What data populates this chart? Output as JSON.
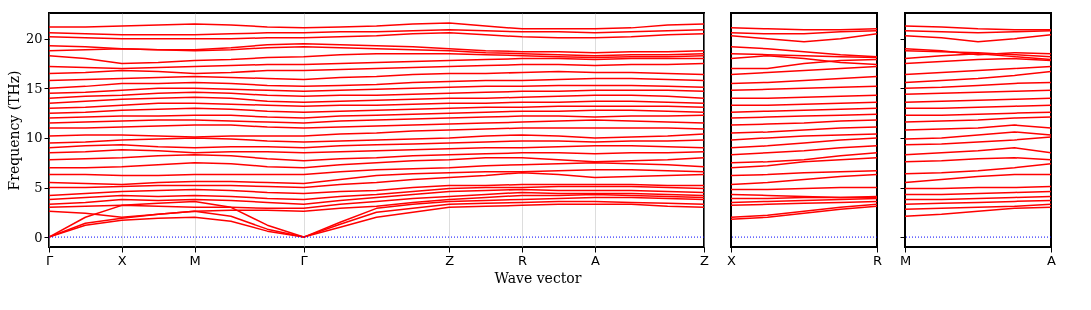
{
  "chart_data": [
    {
      "type": "line",
      "ylabel": "Frequency (THz)",
      "xlabel": "Wave vector",
      "color": "#ff0000",
      "grid": "x",
      "ylim": [
        -1,
        22.6
      ],
      "yticks": [
        0,
        5,
        10,
        15,
        20
      ],
      "categories": [
        "Γ",
        null,
        "X",
        null,
        "M",
        null,
        null,
        "Γ",
        null,
        null,
        null,
        "Z",
        null,
        "R",
        null,
        "A",
        null,
        null,
        "Z"
      ],
      "ref_lines": [
        {
          "axis": "y",
          "value": 0,
          "color": "#0000ff",
          "line_style": "dotted"
        }
      ],
      "series": [
        {
          "values": [
            0,
            1.2,
            1.7,
            1.9,
            2.0,
            1.6,
            0.6,
            0,
            1.0,
            2.0,
            2.5,
            3.0,
            3.1,
            3.2,
            3.3,
            3.3,
            3.3,
            3.1,
            3.0
          ]
        },
        {
          "values": [
            0,
            1.4,
            1.9,
            2.3,
            2.6,
            2.1,
            0.8,
            0,
            1.3,
            2.5,
            2.9,
            3.3,
            3.4,
            3.5,
            3.6,
            3.6,
            3.5,
            3.4,
            3.3
          ]
        },
        {
          "values": [
            0,
            2.0,
            3.2,
            3.4,
            3.6,
            3.0,
            1.2,
            0,
            1.5,
            2.9,
            3.3,
            3.6,
            3.7,
            3.8,
            3.9,
            4.0,
            4.0,
            3.9,
            3.8
          ]
        },
        {
          "values": [
            2.6,
            2.4,
            2.0,
            2.3,
            2.6,
            2.7,
            2.7,
            2.6,
            2.9,
            3.1,
            3.5,
            3.8,
            4.0,
            4.2,
            4.2,
            4.3,
            4.2,
            4.1,
            4.0
          ]
        },
        {
          "values": [
            3.0,
            3.1,
            3.2,
            3.1,
            3.0,
            3.0,
            2.9,
            2.9,
            3.3,
            3.6,
            3.9,
            4.1,
            4.3,
            4.5,
            4.4,
            4.4,
            4.4,
            4.3,
            4.2
          ]
        },
        {
          "values": [
            3.3,
            3.5,
            3.8,
            3.7,
            3.8,
            3.7,
            3.5,
            3.3,
            3.7,
            4.0,
            4.3,
            4.6,
            4.7,
            4.8,
            4.7,
            4.7,
            4.7,
            4.6,
            4.5
          ]
        },
        {
          "values": [
            3.8,
            4.0,
            4.2,
            4.1,
            4.2,
            4.1,
            3.9,
            3.8,
            4.1,
            4.3,
            4.6,
            4.9,
            5.0,
            5.0,
            5.1,
            5.1,
            5.1,
            5.0,
            4.9
          ]
        },
        {
          "values": [
            4.2,
            4.4,
            4.6,
            4.7,
            4.8,
            4.7,
            4.5,
            4.4,
            4.6,
            4.7,
            5.0,
            5.2,
            5.2,
            5.3,
            5.3,
            5.3,
            5.3,
            5.2,
            5.2
          ]
        },
        {
          "values": [
            5.0,
            5.0,
            5.1,
            5.2,
            5.2,
            5.2,
            5.1,
            5.0,
            5.3,
            5.5,
            5.8,
            6.0,
            6.2,
            6.5,
            6.3,
            6.0,
            6.1,
            6.2,
            6.3
          ]
        },
        {
          "values": [
            5.5,
            5.4,
            5.3,
            5.5,
            5.6,
            5.6,
            5.5,
            5.4,
            5.8,
            6.2,
            6.4,
            6.5,
            6.6,
            6.6,
            6.7,
            6.8,
            6.8,
            6.7,
            6.6
          ]
        },
        {
          "values": [
            6.3,
            6.3,
            6.2,
            6.2,
            6.3,
            6.3,
            6.3,
            6.3,
            6.6,
            6.8,
            6.9,
            7.0,
            7.2,
            7.3,
            7.4,
            7.5,
            7.4,
            7.3,
            7.1
          ]
        },
        {
          "values": [
            7.0,
            7.0,
            7.1,
            7.3,
            7.5,
            7.4,
            7.1,
            7.0,
            7.3,
            7.5,
            7.7,
            7.8,
            8.0,
            8.0,
            7.8,
            7.6,
            7.7,
            7.8,
            8.0
          ]
        },
        {
          "values": [
            7.8,
            7.9,
            8.0,
            8.2,
            8.3,
            8.2,
            7.9,
            7.7,
            7.9,
            8.0,
            8.2,
            8.3,
            8.4,
            8.5,
            8.5,
            8.4,
            8.5,
            8.5,
            8.6
          ]
        },
        {
          "values": [
            8.5,
            8.6,
            8.8,
            8.7,
            8.5,
            8.6,
            8.6,
            8.5,
            8.6,
            8.7,
            8.8,
            8.9,
            9.0,
            9.0,
            9.1,
            9.2,
            9.2,
            9.1,
            9.0
          ]
        },
        {
          "values": [
            9.0,
            9.2,
            9.3,
            9.1,
            9.0,
            9.1,
            9.1,
            9.0,
            9.2,
            9.3,
            9.4,
            9.5,
            9.6,
            9.7,
            9.7,
            9.6,
            9.7,
            9.7,
            9.8
          ]
        },
        {
          "values": [
            9.5,
            9.6,
            9.8,
            9.9,
            10.0,
            9.9,
            9.7,
            9.6,
            9.7,
            9.8,
            9.9,
            10.0,
            10.2,
            10.3,
            10.2,
            10.0,
            10.1,
            10.2,
            10.4
          ]
        },
        {
          "values": [
            10.2,
            10.3,
            10.3,
            10.2,
            10.1,
            10.2,
            10.2,
            10.2,
            10.4,
            10.5,
            10.7,
            10.8,
            10.9,
            11.0,
            11.0,
            11.0,
            11.0,
            11.0,
            10.9
          ]
        },
        {
          "values": [
            11.0,
            11.0,
            11.1,
            11.2,
            11.3,
            11.3,
            11.1,
            11.0,
            11.1,
            11.2,
            11.3,
            11.4,
            11.5,
            11.6,
            11.7,
            11.8,
            11.7,
            11.6,
            11.5
          ]
        },
        {
          "values": [
            11.5,
            11.6,
            11.7,
            11.8,
            11.8,
            11.7,
            11.6,
            11.5,
            11.7,
            11.8,
            11.9,
            12.0,
            12.1,
            12.2,
            12.2,
            12.1,
            12.2,
            12.2,
            12.3
          ]
        },
        {
          "values": [
            12.0,
            12.1,
            12.2,
            12.2,
            12.3,
            12.3,
            12.1,
            12.0,
            12.2,
            12.3,
            12.4,
            12.5,
            12.6,
            12.7,
            12.7,
            12.8,
            12.8,
            12.7,
            12.6
          ]
        },
        {
          "values": [
            12.5,
            12.6,
            12.8,
            12.9,
            13.0,
            12.9,
            12.7,
            12.6,
            12.7,
            12.8,
            12.9,
            13.0,
            13.1,
            13.1,
            13.2,
            13.2,
            13.2,
            13.2,
            13.1
          ]
        },
        {
          "values": [
            13.0,
            13.1,
            13.3,
            13.5,
            13.5,
            13.4,
            13.3,
            13.2,
            13.3,
            13.3,
            13.4,
            13.5,
            13.5,
            13.6,
            13.6,
            13.7,
            13.7,
            13.6,
            13.5
          ]
        },
        {
          "values": [
            13.5,
            13.7,
            13.9,
            14.0,
            14.1,
            14.0,
            13.7,
            13.6,
            13.7,
            13.8,
            13.9,
            14.0,
            14.0,
            14.1,
            14.2,
            14.3,
            14.3,
            14.2,
            14.0
          ]
        },
        {
          "values": [
            14.0,
            14.2,
            14.3,
            14.5,
            14.6,
            14.5,
            14.3,
            14.2,
            14.3,
            14.3,
            14.4,
            14.5,
            14.6,
            14.7,
            14.7,
            14.8,
            14.8,
            14.8,
            14.7
          ]
        },
        {
          "values": [
            14.5,
            14.6,
            14.8,
            15.0,
            15.0,
            14.9,
            14.8,
            14.7,
            14.8,
            14.9,
            15.0,
            15.1,
            15.2,
            15.2,
            15.3,
            15.3,
            15.3,
            15.2,
            15.1
          ]
        },
        {
          "values": [
            15.0,
            15.2,
            15.5,
            15.5,
            15.6,
            15.5,
            15.3,
            15.2,
            15.3,
            15.4,
            15.6,
            15.7,
            15.8,
            15.8,
            15.9,
            16.0,
            16.0,
            15.9,
            15.8
          ]
        },
        {
          "values": [
            15.8,
            15.9,
            16.0,
            16.1,
            16.2,
            16.1,
            16.0,
            15.9,
            16.1,
            16.2,
            16.4,
            16.5,
            16.5,
            16.6,
            16.7,
            16.6,
            16.6,
            16.5,
            16.4
          ]
        },
        {
          "values": [
            16.5,
            16.6,
            16.8,
            16.7,
            16.5,
            16.6,
            16.8,
            16.8,
            16.9,
            17.0,
            17.1,
            17.2,
            17.3,
            17.4,
            17.4,
            17.3,
            17.4,
            17.4,
            17.5
          ]
        },
        {
          "values": [
            17.2,
            17.1,
            17.0,
            17.1,
            17.2,
            17.3,
            17.4,
            17.4,
            17.5,
            17.6,
            17.7,
            17.8,
            17.9,
            18.0,
            18.0,
            17.9,
            18.0,
            18.0,
            18.0
          ]
        },
        {
          "values": [
            18.3,
            18.0,
            17.5,
            17.6,
            17.8,
            17.9,
            18.1,
            18.2,
            18.4,
            18.5,
            18.5,
            18.5,
            18.4,
            18.3,
            18.2,
            18.1,
            18.2,
            18.2,
            18.3
          ]
        },
        {
          "values": [
            18.8,
            18.9,
            19.0,
            18.9,
            18.8,
            18.9,
            19.1,
            19.2,
            19.1,
            19.0,
            18.9,
            18.8,
            18.6,
            18.5,
            18.4,
            18.3,
            18.4,
            18.4,
            18.5
          ]
        },
        {
          "values": [
            19.3,
            19.2,
            19.0,
            18.9,
            18.9,
            19.1,
            19.4,
            19.5,
            19.4,
            19.3,
            19.2,
            19.0,
            18.8,
            18.7,
            18.7,
            18.6,
            18.7,
            18.7,
            18.8
          ]
        },
        {
          "values": [
            20.2,
            20.1,
            20.0,
            20.0,
            20.0,
            20.0,
            20.1,
            20.1,
            20.2,
            20.3,
            20.5,
            20.6,
            20.4,
            20.2,
            20.1,
            20.1,
            20.2,
            20.4,
            20.5
          ]
        },
        {
          "values": [
            20.6,
            20.5,
            20.4,
            20.4,
            20.4,
            20.5,
            20.6,
            20.6,
            20.7,
            20.7,
            20.8,
            20.9,
            20.8,
            20.7,
            20.7,
            20.6,
            20.7,
            20.8,
            20.9
          ]
        },
        {
          "values": [
            21.2,
            21.2,
            21.3,
            21.4,
            21.5,
            21.4,
            21.2,
            21.1,
            21.2,
            21.3,
            21.5,
            21.6,
            21.3,
            21.0,
            21.0,
            21.0,
            21.1,
            21.4,
            21.5
          ]
        }
      ]
    },
    {
      "type": "line",
      "color": "#ff0000",
      "tick_labels": "x",
      "ylim": [
        -1,
        22.6
      ],
      "yticks": [
        0,
        5,
        10,
        15,
        20
      ],
      "categories": [
        "X",
        null,
        null,
        null,
        "R"
      ],
      "ref_lines": [
        {
          "axis": "y",
          "value": 0,
          "color": "#0000ff",
          "line_style": "dotted"
        }
      ],
      "series": [
        {
          "values": [
            1.8,
            2.0,
            2.4,
            2.8,
            3.1
          ]
        },
        {
          "values": [
            2.0,
            2.2,
            2.6,
            3.0,
            3.3
          ]
        },
        {
          "values": [
            3.2,
            3.3,
            3.4,
            3.5,
            3.6
          ]
        },
        {
          "values": [
            3.5,
            3.6,
            3.7,
            3.8,
            3.9
          ]
        },
        {
          "values": [
            3.9,
            3.9,
            4.0,
            4.0,
            4.1
          ]
        },
        {
          "values": [
            4.3,
            4.2,
            4.1,
            4.0,
            4.0
          ]
        },
        {
          "values": [
            4.8,
            4.8,
            4.9,
            5.0,
            5.0
          ]
        },
        {
          "values": [
            5.3,
            5.5,
            5.8,
            6.1,
            6.3
          ]
        },
        {
          "values": [
            6.2,
            6.3,
            6.5,
            6.6,
            6.7
          ]
        },
        {
          "values": [
            7.0,
            7.2,
            7.6,
            7.8,
            8.0
          ]
        },
        {
          "values": [
            7.5,
            7.6,
            7.8,
            8.2,
            8.5
          ]
        },
        {
          "values": [
            8.3,
            8.5,
            8.7,
            9.0,
            9.2
          ]
        },
        {
          "values": [
            9.0,
            9.2,
            9.5,
            9.8,
            10.0
          ]
        },
        {
          "values": [
            9.8,
            10.0,
            10.2,
            10.3,
            10.4
          ]
        },
        {
          "values": [
            10.5,
            10.6,
            10.8,
            11.0,
            11.1
          ]
        },
        {
          "values": [
            11.3,
            11.4,
            11.5,
            11.7,
            11.8
          ]
        },
        {
          "values": [
            12.0,
            12.1,
            12.2,
            12.3,
            12.4
          ]
        },
        {
          "values": [
            12.6,
            12.7,
            12.8,
            12.9,
            13.0
          ]
        },
        {
          "values": [
            13.3,
            13.3,
            13.4,
            13.5,
            13.6
          ]
        },
        {
          "values": [
            14.0,
            14.0,
            14.1,
            14.2,
            14.3
          ]
        },
        {
          "values": [
            14.8,
            14.9,
            15.0,
            15.1,
            15.2
          ]
        },
        {
          "values": [
            15.5,
            15.6,
            15.8,
            16.0,
            16.2
          ]
        },
        {
          "values": [
            16.4,
            16.6,
            16.8,
            17.0,
            17.2
          ]
        },
        {
          "values": [
            17.0,
            17.0,
            17.5,
            17.8,
            17.9
          ]
        },
        {
          "values": [
            18.0,
            18.3,
            18.0,
            17.6,
            17.4
          ]
        },
        {
          "values": [
            18.5,
            18.4,
            18.3,
            18.2,
            18.1
          ]
        },
        {
          "values": [
            19.2,
            19.0,
            18.7,
            18.4,
            18.2
          ]
        },
        {
          "values": [
            20.3,
            20.0,
            19.7,
            20.0,
            20.5
          ]
        },
        {
          "values": [
            20.6,
            20.5,
            20.5,
            20.7,
            20.8
          ]
        },
        {
          "values": [
            21.1,
            21.0,
            20.9,
            20.9,
            21.0
          ]
        }
      ]
    },
    {
      "type": "line",
      "color": "#ff0000",
      "tick_labels": "x",
      "ylim": [
        -1,
        22.6
      ],
      "yticks": [
        0,
        5,
        10,
        15,
        20
      ],
      "categories": [
        "M",
        null,
        null,
        null,
        "A"
      ],
      "ref_lines": [
        {
          "axis": "y",
          "value": 0,
          "color": "#0000ff",
          "line_style": "dotted"
        }
      ],
      "series": [
        {
          "values": [
            2.1,
            2.3,
            2.6,
            2.9,
            3.0
          ]
        },
        {
          "values": [
            2.8,
            2.9,
            3.0,
            3.1,
            3.3
          ]
        },
        {
          "values": [
            3.3,
            3.4,
            3.5,
            3.6,
            3.7
          ]
        },
        {
          "values": [
            3.8,
            3.8,
            3.9,
            4.0,
            4.1
          ]
        },
        {
          "values": [
            4.3,
            4.3,
            4.4,
            4.5,
            4.6
          ]
        },
        {
          "values": [
            4.9,
            4.9,
            5.0,
            5.0,
            5.1
          ]
        },
        {
          "values": [
            5.5,
            5.8,
            6.1,
            6.3,
            6.3
          ]
        },
        {
          "values": [
            6.4,
            6.5,
            6.7,
            7.0,
            7.4
          ]
        },
        {
          "values": [
            7.6,
            7.7,
            7.9,
            8.0,
            7.8
          ]
        },
        {
          "values": [
            8.3,
            8.5,
            8.7,
            9.0,
            8.5
          ]
        },
        {
          "values": [
            9.3,
            9.4,
            9.6,
            9.8,
            10.1
          ]
        },
        {
          "values": [
            9.9,
            10.0,
            10.3,
            10.6,
            10.3
          ]
        },
        {
          "values": [
            10.8,
            10.9,
            11.0,
            11.3,
            11.0
          ]
        },
        {
          "values": [
            11.6,
            11.7,
            11.8,
            12.0,
            12.1
          ]
        },
        {
          "values": [
            12.3,
            12.3,
            12.4,
            12.5,
            12.6
          ]
        },
        {
          "values": [
            13.0,
            13.0,
            13.1,
            13.2,
            13.3
          ]
        },
        {
          "values": [
            13.6,
            13.7,
            13.8,
            13.9,
            14.0
          ]
        },
        {
          "values": [
            14.4,
            14.5,
            14.6,
            14.7,
            14.8
          ]
        },
        {
          "values": [
            15.0,
            15.1,
            15.3,
            15.5,
            15.6
          ]
        },
        {
          "values": [
            15.6,
            15.8,
            16.0,
            16.3,
            16.7
          ]
        },
        {
          "values": [
            16.4,
            16.6,
            16.8,
            17.0,
            17.2
          ]
        },
        {
          "values": [
            17.5,
            17.7,
            17.9,
            18.0,
            17.8
          ]
        },
        {
          "values": [
            18.0,
            18.3,
            18.5,
            18.2,
            17.9
          ]
        },
        {
          "values": [
            18.8,
            18.7,
            18.6,
            18.4,
            18.2
          ]
        },
        {
          "values": [
            19.0,
            18.8,
            18.4,
            18.6,
            18.5
          ]
        },
        {
          "values": [
            20.3,
            20.1,
            19.7,
            20.0,
            20.4
          ]
        },
        {
          "values": [
            20.8,
            20.7,
            20.6,
            20.7,
            20.8
          ]
        },
        {
          "values": [
            21.3,
            21.2,
            21.0,
            20.9,
            20.9
          ]
        }
      ]
    }
  ]
}
